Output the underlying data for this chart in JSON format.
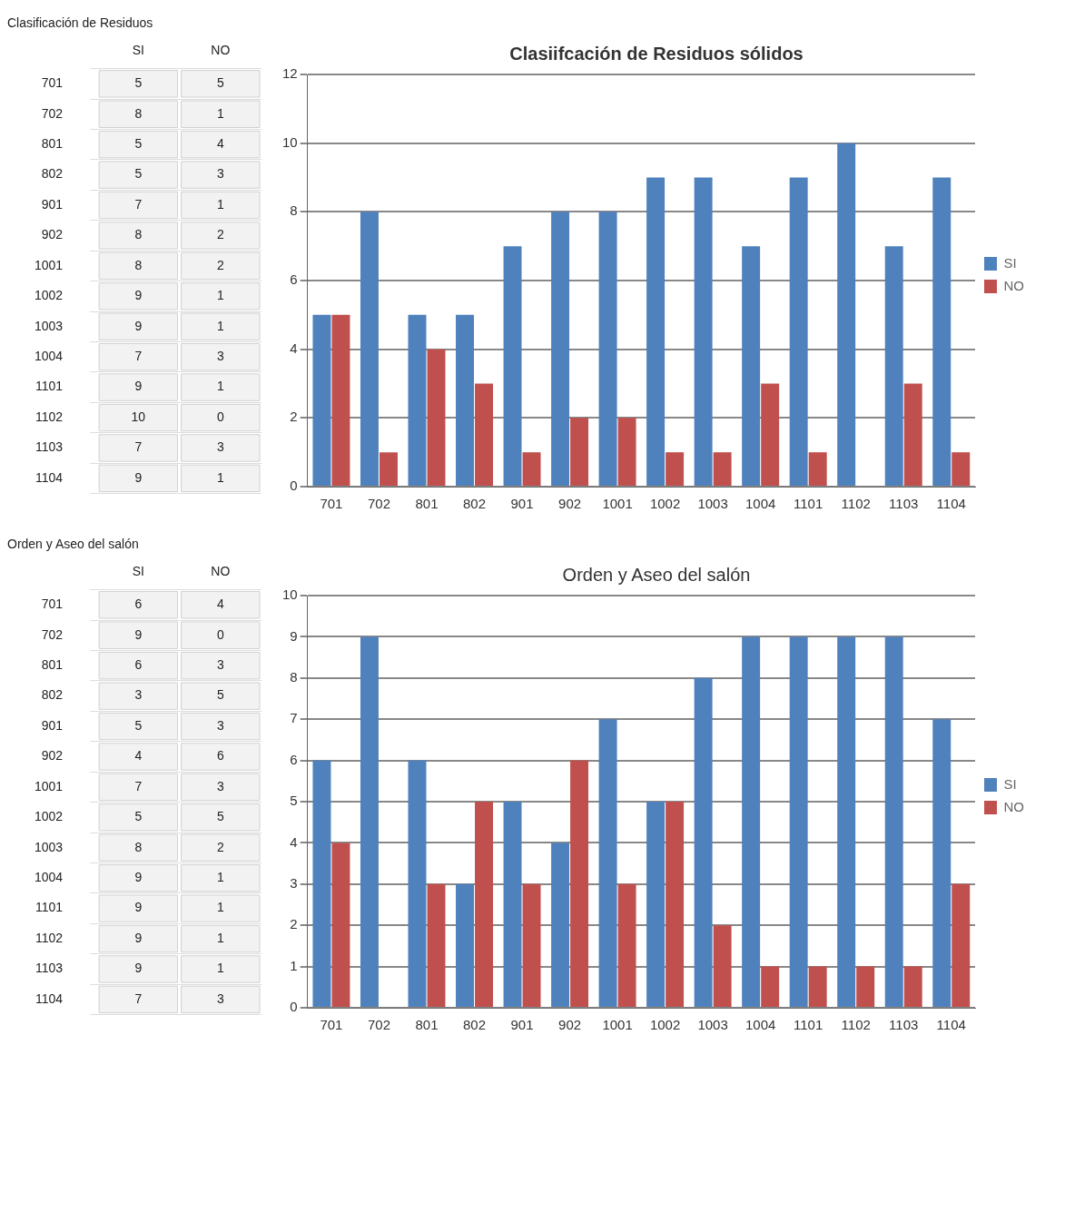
{
  "chart_data": [
    {
      "type": "heatmap",
      "title": "Clasificación de Residuos",
      "categories": [
        "SI",
        "NO"
      ],
      "y_categories": [
        "701",
        "702",
        "801",
        "802",
        "901",
        "902",
        "1001",
        "1002",
        "1003",
        "1004",
        "1101",
        "1102",
        "1103",
        "1104"
      ],
      "cells": [
        [
          5,
          5
        ],
        [
          8,
          1
        ],
        [
          5,
          4
        ],
        [
          5,
          3
        ],
        [
          7,
          1
        ],
        [
          8,
          2
        ],
        [
          8,
          2
        ],
        [
          9,
          1
        ],
        [
          9,
          1
        ],
        [
          7,
          3
        ],
        [
          9,
          1
        ],
        [
          10,
          0
        ],
        [
          7,
          3
        ],
        [
          9,
          1
        ]
      ],
      "data_labels": true
    },
    {
      "type": "bar",
      "title": "Clasiifcación de Residuos sólidos",
      "categories": [
        "701",
        "702",
        "801",
        "802",
        "901",
        "902",
        "1001",
        "1002",
        "1003",
        "1004",
        "1101",
        "1102",
        "1103",
        "1104"
      ],
      "series": [
        {
          "name": "SI",
          "color": "#4f81bd",
          "values": [
            5,
            8,
            5,
            5,
            7,
            8,
            8,
            9,
            9,
            7,
            9,
            10,
            7,
            9
          ]
        },
        {
          "name": "NO",
          "color": "#c0504d",
          "values": [
            5,
            1,
            4,
            3,
            1,
            2,
            2,
            1,
            1,
            3,
            1,
            0,
            3,
            1
          ]
        }
      ],
      "ylim": [
        0,
        12
      ],
      "yticks": [
        0,
        2,
        4,
        6,
        8,
        10,
        12
      ],
      "grid": "y",
      "legend": "right"
    },
    {
      "type": "heatmap",
      "title": "Orden y Aseo del salón",
      "categories": [
        "SI",
        "NO"
      ],
      "y_categories": [
        "701",
        "702",
        "801",
        "802",
        "901",
        "902",
        "1001",
        "1002",
        "1003",
        "1004",
        "1101",
        "1102",
        "1103",
        "1104"
      ],
      "cells": [
        [
          6,
          4
        ],
        [
          9,
          0
        ],
        [
          6,
          3
        ],
        [
          3,
          5
        ],
        [
          5,
          3
        ],
        [
          4,
          6
        ],
        [
          7,
          3
        ],
        [
          5,
          5
        ],
        [
          8,
          2
        ],
        [
          9,
          1
        ],
        [
          9,
          1
        ],
        [
          9,
          1
        ],
        [
          9,
          1
        ],
        [
          7,
          3
        ]
      ],
      "data_labels": true
    },
    {
      "type": "bar",
      "title": "Orden y Aseo del salón",
      "categories": [
        "701",
        "702",
        "801",
        "802",
        "901",
        "902",
        "1001",
        "1002",
        "1003",
        "1004",
        "1101",
        "1102",
        "1103",
        "1104"
      ],
      "series": [
        {
          "name": "SI",
          "color": "#4f81bd",
          "values": [
            6,
            9,
            6,
            3,
            5,
            4,
            7,
            5,
            8,
            9,
            9,
            9,
            9,
            7
          ]
        },
        {
          "name": "NO",
          "color": "#c0504d",
          "values": [
            4,
            0,
            3,
            5,
            3,
            6,
            3,
            5,
            2,
            1,
            1,
            1,
            1,
            3
          ]
        }
      ],
      "ylim": [
        0,
        10
      ],
      "yticks": [
        0,
        1,
        2,
        3,
        4,
        5,
        6,
        7,
        8,
        9,
        10
      ],
      "grid": "y",
      "legend": "right"
    }
  ]
}
